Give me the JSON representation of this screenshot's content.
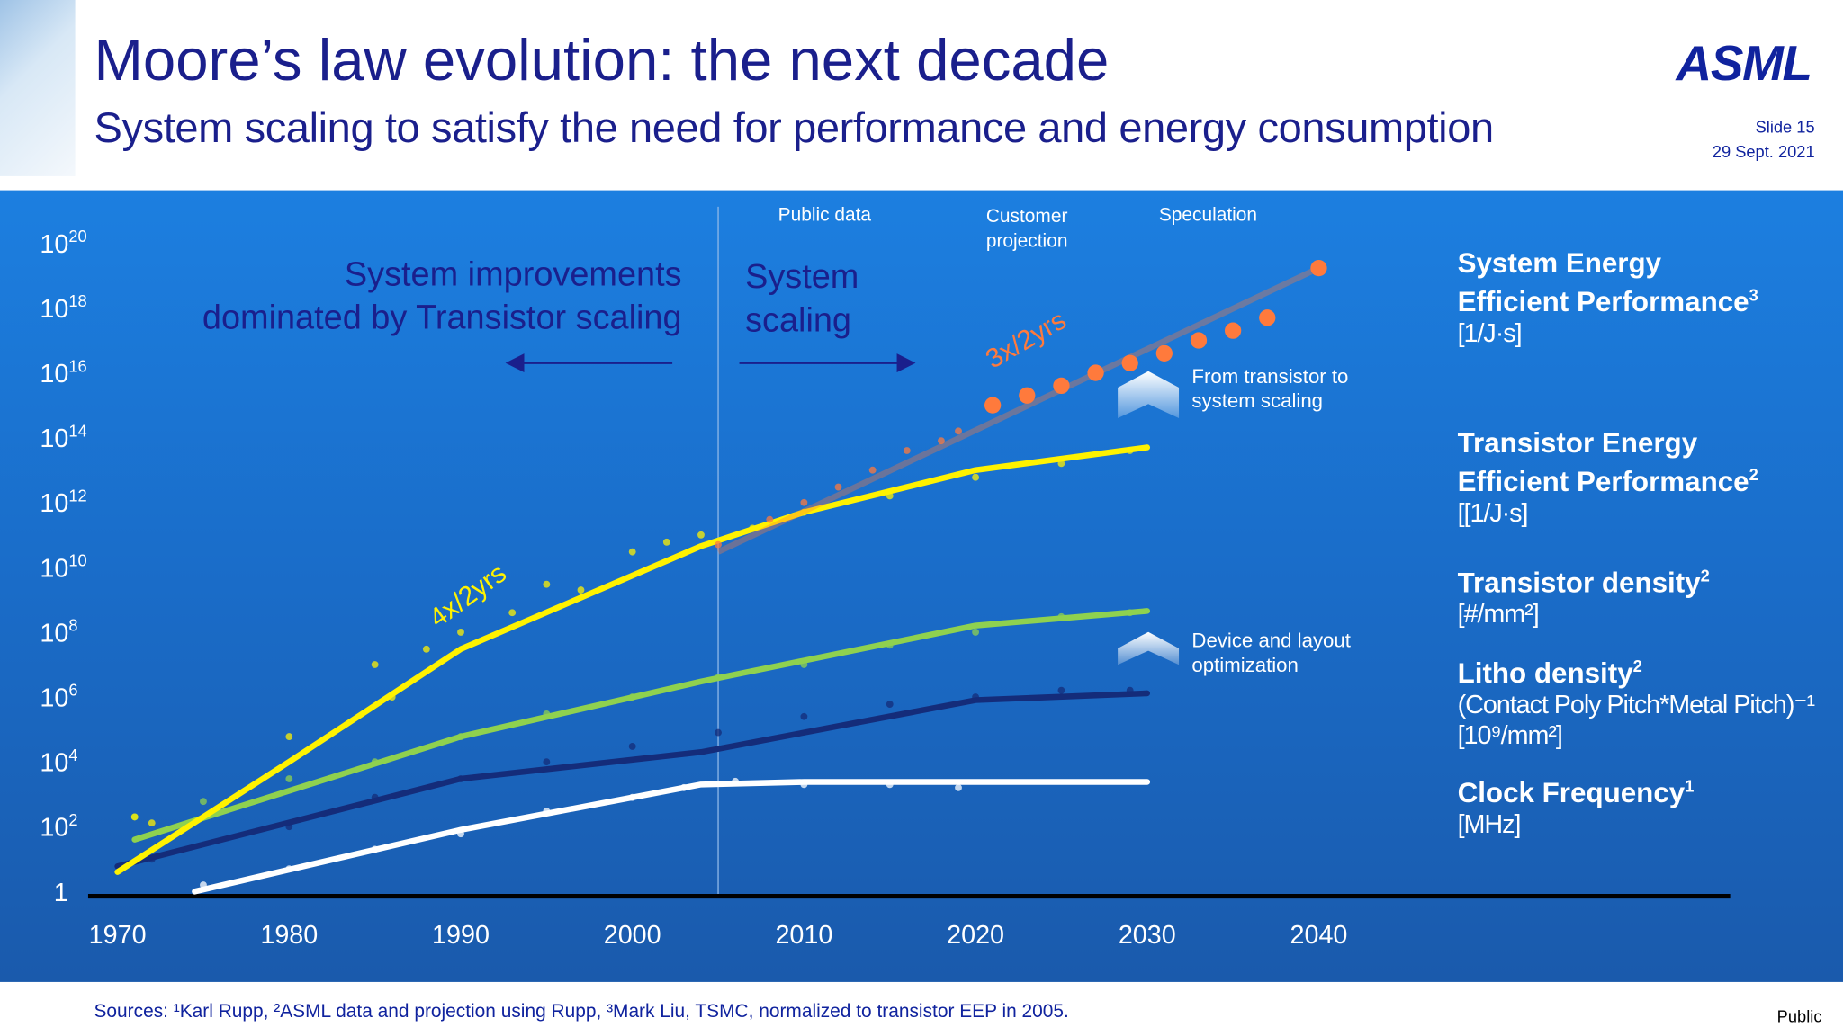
{
  "header": {
    "title": "Moore’s law evolution: the next decade",
    "subtitle": "System scaling to satisfy the need for performance and energy consumption",
    "logo": "ASML",
    "slide": "Slide 15",
    "date": "29 Sept. 2021"
  },
  "footer": {
    "sources": "Sources: ¹Karl Rupp, ²ASML data and projection using Rupp, ³Mark Liu, TSMC, normalized to transistor EEP in 2005.",
    "classification": "Public"
  },
  "annotations": {
    "left_text": [
      "System improvements",
      "dominated by Transistor scaling"
    ],
    "right_text": [
      "System",
      "scaling"
    ],
    "public_data": "Public data",
    "customer_projection": [
      "Customer",
      "projection"
    ],
    "speculation": "Speculation",
    "system_rate": "3x/2yrs",
    "transistor_rate": "4x/2yrs",
    "transition_note": [
      "From transistor to",
      "system scaling"
    ],
    "device_note": [
      "Device and layout",
      "optimization"
    ]
  },
  "legend": [
    {
      "title": "System Energy",
      "title2": "Efficient Performance",
      "sup": "3",
      "unit": "[1/J·s]"
    },
    {
      "title": "Transistor Energy",
      "title2": "Efficient Performance",
      "sup": "2",
      "unit": "[[1/J·s]"
    },
    {
      "title": "Transistor density",
      "sup": "2",
      "unit": "[#/mm²]"
    },
    {
      "title": "Litho density",
      "sup": "2",
      "unit": "(Contact Poly Pitch*Metal Pitch)⁻¹",
      "unit2": "[10⁹/mm²]"
    },
    {
      "title": "Clock Frequency",
      "sup": "1",
      "unit": "[MHz]"
    }
  ],
  "chart_data": {
    "type": "scatter",
    "xlabel": "",
    "ylabel": "",
    "x_ticks": [
      "1970",
      "1980",
      "1990",
      "2000",
      "2010",
      "2020",
      "2030",
      "2040"
    ],
    "xlim": [
      1968,
      2064
    ],
    "y_scale": "log",
    "y_ticks": [
      {
        "base": "10",
        "exp": "20"
      },
      {
        "base": "10",
        "exp": "18"
      },
      {
        "base": "10",
        "exp": "16"
      },
      {
        "base": "10",
        "exp": "14"
      },
      {
        "base": "10",
        "exp": "12"
      },
      {
        "base": "10",
        "exp": "10"
      },
      {
        "base": "10",
        "exp": "8"
      },
      {
        "base": "10",
        "exp": "6"
      },
      {
        "base": "10",
        "exp": "4"
      },
      {
        "base": "10",
        "exp": "2"
      },
      {
        "base": "1",
        "exp": ""
      }
    ],
    "ylim": [
      1,
      1e+20
    ],
    "divider_year": 2005,
    "grid": false,
    "series": [
      {
        "name": "System Energy Efficient Performance",
        "color": "#ff7a3c",
        "points": [
          [
            2005,
            50000000000.0
          ],
          [
            2008,
            300000000000.0
          ],
          [
            2010,
            1000000000000.0
          ],
          [
            2012,
            3000000000000.0
          ],
          [
            2014,
            10000000000000.0
          ],
          [
            2016,
            40000000000000.0
          ],
          [
            2018,
            80000000000000.0
          ],
          [
            2019,
            160000000000000.0
          ]
        ],
        "projection": [
          [
            2021,
            1000000000000000.0
          ],
          [
            2023,
            2000000000000000.0
          ],
          [
            2025,
            4000000000000000.0
          ],
          [
            2027,
            1e+16
          ],
          [
            2029,
            2e+16
          ],
          [
            2031,
            4e+16
          ],
          [
            2033,
            1e+17
          ],
          [
            2035,
            2e+17
          ],
          [
            2037,
            5e+17
          ],
          [
            2040,
            1.7e+19
          ]
        ],
        "fit": [
          [
            2005,
            30000000000.0
          ],
          [
            2021,
            1000000000000000.0
          ]
        ]
      },
      {
        "name": "Transistor Energy Efficient Performance",
        "color": "#fff200",
        "points": [
          [
            1971,
            200.0
          ],
          [
            1972,
            130.0
          ],
          [
            1980,
            60000.0
          ],
          [
            1985,
            10000000.0
          ],
          [
            1986,
            1000000.0
          ],
          [
            1988,
            30000000.0
          ],
          [
            1990,
            100000000.0
          ],
          [
            1993,
            400000000.0
          ],
          [
            1995,
            3000000000.0
          ],
          [
            1997,
            2000000000.0
          ],
          [
            2000,
            30000000000.0
          ],
          [
            2002,
            60000000000.0
          ],
          [
            2004,
            100000000000.0
          ],
          [
            2007,
            160000000000.0
          ],
          [
            2010,
            500000000000.0
          ],
          [
            2015,
            1600000000000.0
          ],
          [
            2020,
            6000000000000.0
          ],
          [
            2025,
            16000000000000.0
          ],
          [
            2029,
            40000000000000.0
          ]
        ],
        "fit": [
          [
            1970,
            4
          ],
          [
            1980,
            10000.0
          ],
          [
            1990,
            30000000.0
          ],
          [
            2004,
            45000000000.0
          ],
          [
            2010,
            500000000000.0
          ],
          [
            2020,
            10000000000000.0
          ],
          [
            2030,
            50000000000000.0
          ]
        ]
      },
      {
        "name": "Transistor density",
        "color": "#8fd14f",
        "points": [
          [
            1971,
            200.0
          ],
          [
            1975,
            600.0
          ],
          [
            1980,
            3000.0
          ],
          [
            1985,
            10000.0
          ],
          [
            1990,
            60000.0
          ],
          [
            1995,
            300000.0
          ],
          [
            2000,
            1000000.0
          ],
          [
            2005,
            4000000.0
          ],
          [
            2010,
            10000000.0
          ],
          [
            2015,
            40000000.0
          ],
          [
            2020,
            100000000.0
          ],
          [
            2025,
            300000000.0
          ],
          [
            2029,
            400000000.0
          ]
        ],
        "fit": [
          [
            1971,
            40.0
          ],
          [
            1990,
            60000.0
          ],
          [
            2004,
            3000000.0
          ],
          [
            2020,
            160000000.0
          ],
          [
            2030,
            450000000.0
          ]
        ]
      },
      {
        "name": "Litho density",
        "color": "#142c7a",
        "points": [
          [
            1972,
            10.0
          ],
          [
            1980,
            100.0
          ],
          [
            1985,
            800.0
          ],
          [
            1990,
            3000.0
          ],
          [
            1995,
            10000.0
          ],
          [
            2000,
            30000.0
          ],
          [
            2005,
            80000.0
          ],
          [
            2010,
            250000.0
          ],
          [
            2015,
            600000.0
          ],
          [
            2020,
            1000000.0
          ],
          [
            2025,
            1600000.0
          ],
          [
            2029,
            1600000.0
          ]
        ],
        "fit": [
          [
            1970,
            6
          ],
          [
            1990,
            3000.0
          ],
          [
            2004,
            20000.0
          ],
          [
            2020,
            800000.0
          ],
          [
            2030,
            1300000.0
          ]
        ]
      },
      {
        "name": "Clock Frequency",
        "color": "#ffffff",
        "points": [
          [
            1975,
            1.6
          ],
          [
            1980,
            5
          ],
          [
            1985,
            20.0
          ],
          [
            1990,
            60.0
          ],
          [
            1995,
            300.0
          ],
          [
            2000,
            800.0
          ],
          [
            2003,
            1600.0
          ],
          [
            2006,
            2500.0
          ],
          [
            2010,
            2000.0
          ],
          [
            2015,
            2000.0
          ],
          [
            2019,
            1600.0
          ]
        ],
        "fit": [
          [
            1974.5,
            1
          ],
          [
            1990,
            80.0
          ],
          [
            2004,
            2000.0
          ],
          [
            2010,
            2400.0
          ],
          [
            2030,
            2400.0
          ]
        ]
      }
    ]
  }
}
